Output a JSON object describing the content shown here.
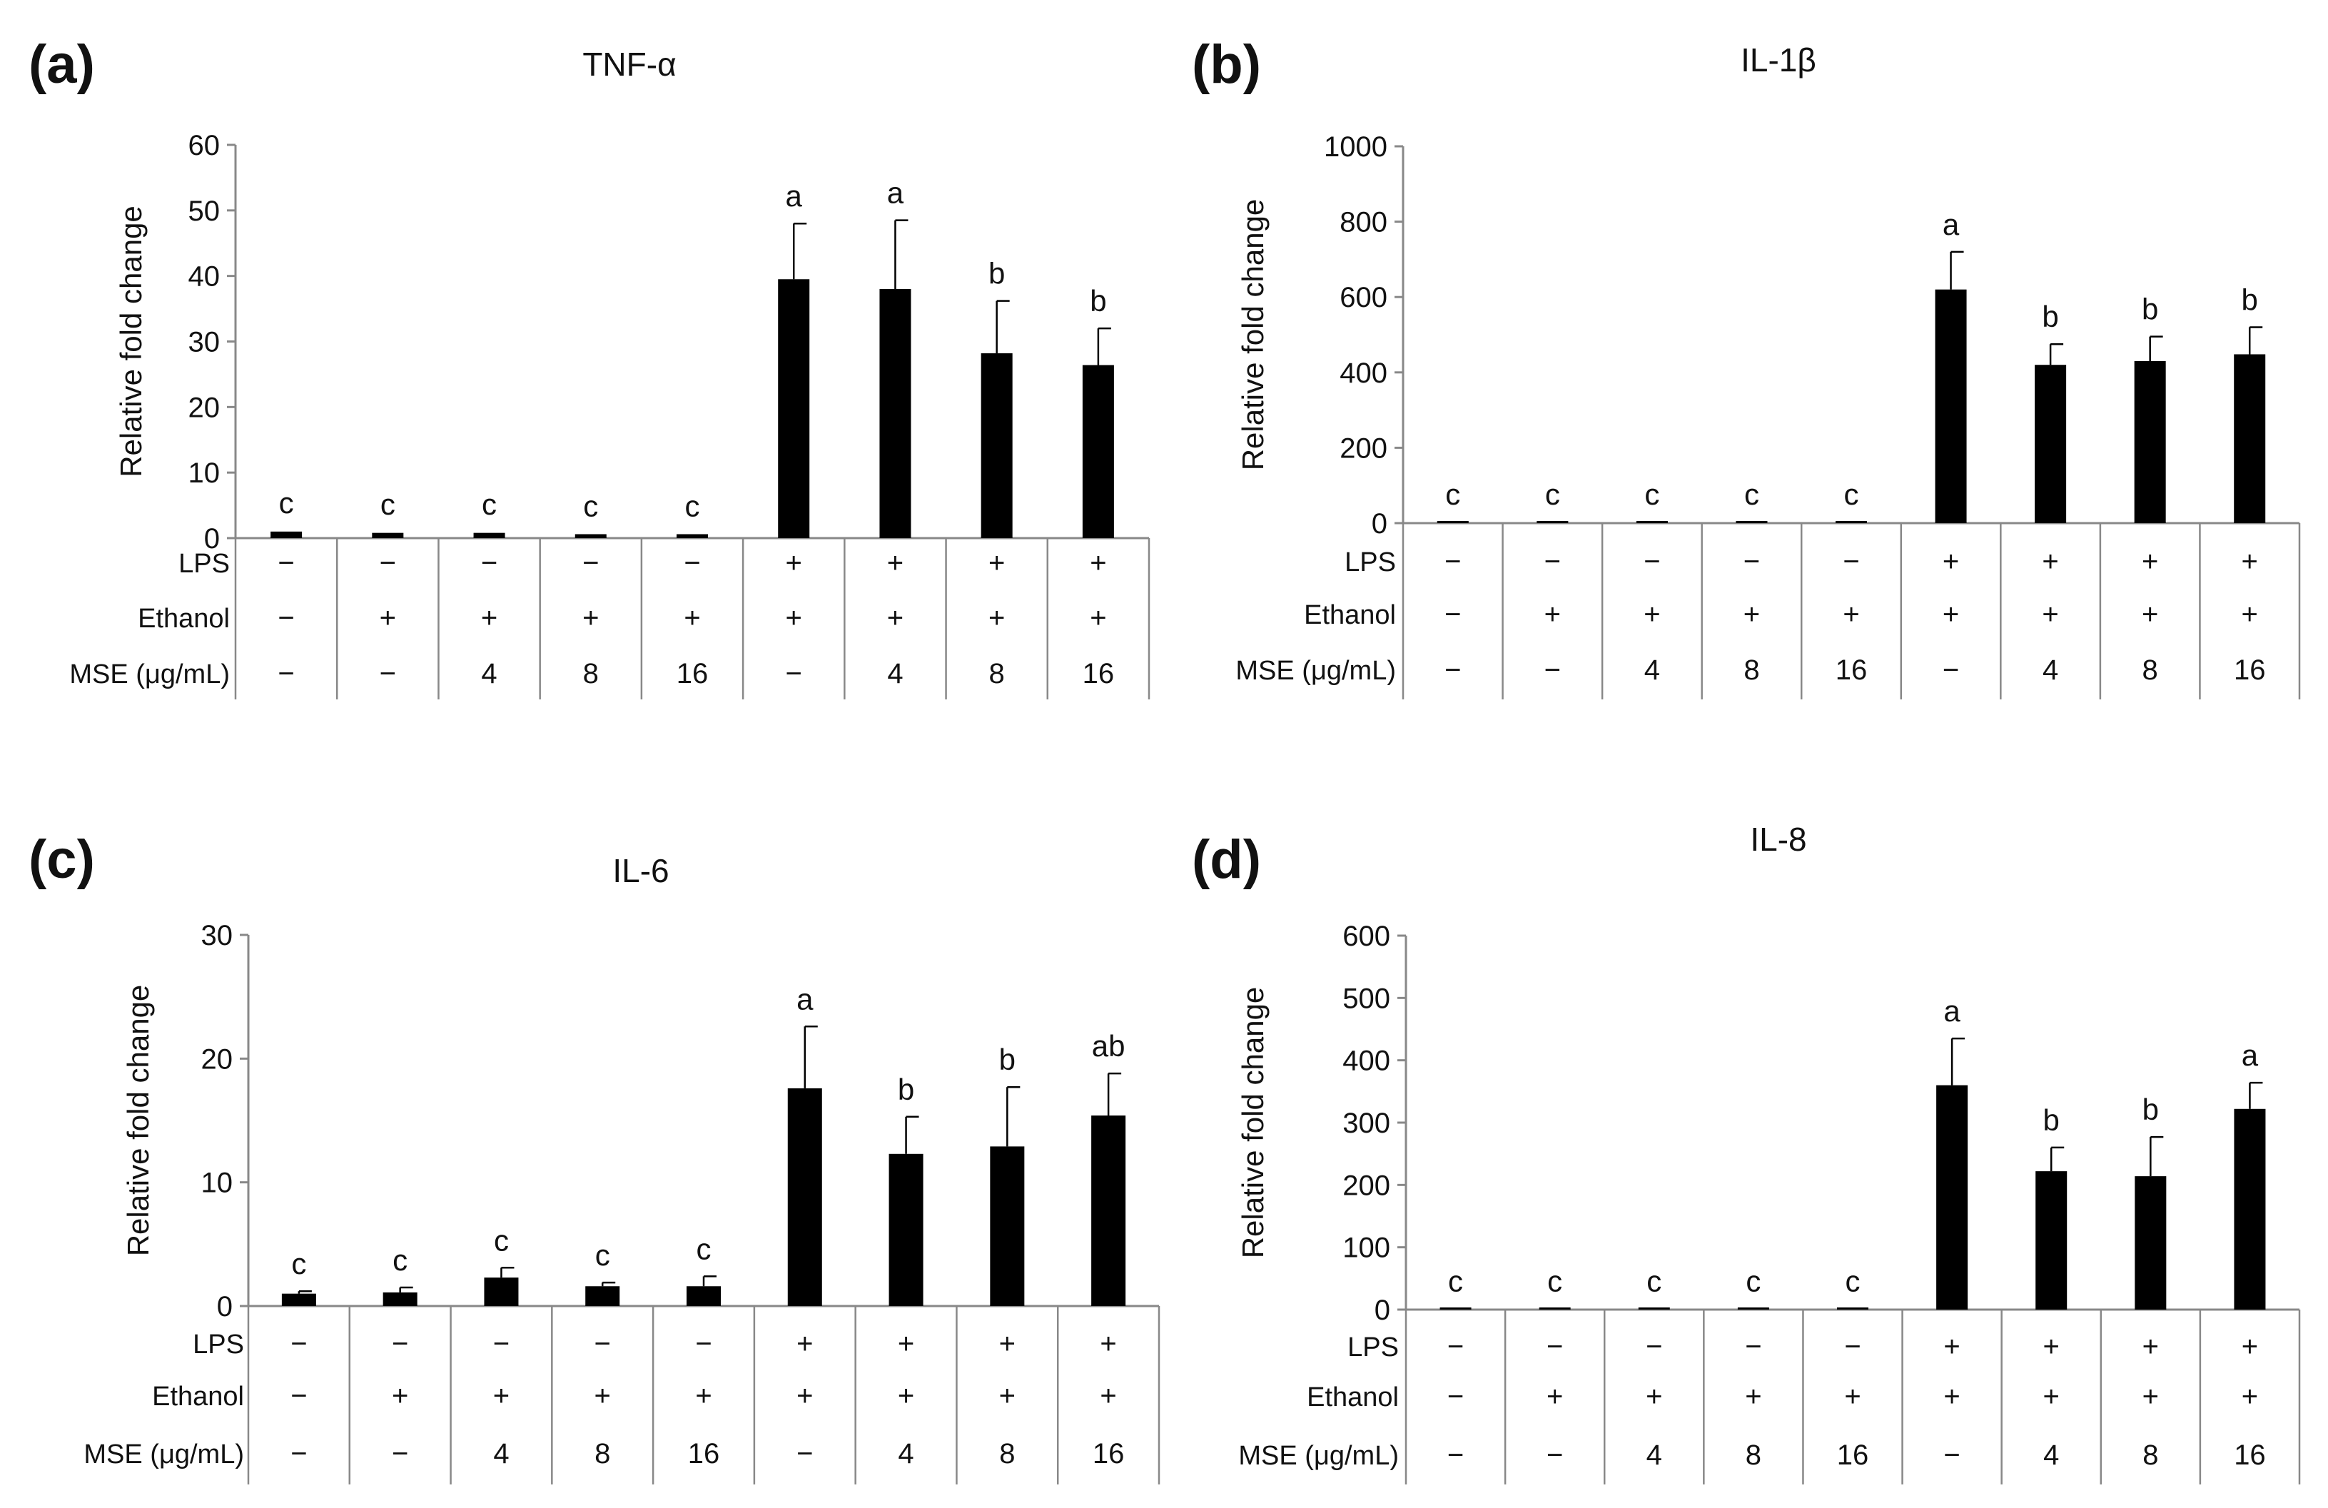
{
  "chart_data": [
    {
      "type": "bar",
      "panel_label": "(a)",
      "title": "TNF-α",
      "ylabel": "Relative fold change",
      "ylim": [
        0,
        60
      ],
      "yticks": [
        "0",
        "10",
        "20",
        "30",
        "40",
        "50",
        "60"
      ],
      "values": [
        1.0,
        0.8,
        0.8,
        0.6,
        0.6,
        39.5,
        38.0,
        28.2,
        26.4
      ],
      "errors": [
        0.2,
        0.2,
        0.2,
        0.1,
        0.1,
        8.5,
        10.5,
        8.0,
        5.6
      ],
      "letters": [
        "c",
        "c",
        "c",
        "c",
        "c",
        "a",
        "a",
        "b",
        "b"
      ],
      "rows": [
        {
          "label": "LPS",
          "cells": [
            "−",
            "−",
            "−",
            "−",
            "−",
            "+",
            "+",
            "+",
            "+"
          ]
        },
        {
          "label": "Ethanol",
          "cells": [
            "−",
            "+",
            "+",
            "+",
            "+",
            "+",
            "+",
            "+",
            "+"
          ]
        },
        {
          "label": "MSE (μg/mL)",
          "cells": [
            "−",
            "−",
            "4",
            "8",
            "16",
            "−",
            "4",
            "8",
            "16"
          ]
        }
      ]
    },
    {
      "type": "bar",
      "panel_label": "(b)",
      "title": "IL-1β",
      "ylabel": "Relative fold change",
      "ylim": [
        0,
        1000
      ],
      "yticks": [
        "0",
        "200",
        "400",
        "600",
        "800",
        "1000"
      ],
      "values": [
        3,
        3,
        3,
        3,
        3,
        620,
        420,
        430,
        448
      ],
      "errors": [
        1,
        1,
        1,
        1,
        1,
        100,
        55,
        65,
        72
      ],
      "letters": [
        "c",
        "c",
        "c",
        "c",
        "c",
        "a",
        "b",
        "b",
        "b"
      ],
      "rows": [
        {
          "label": "LPS",
          "cells": [
            "−",
            "−",
            "−",
            "−",
            "−",
            "+",
            "+",
            "+",
            "+"
          ]
        },
        {
          "label": "Ethanol",
          "cells": [
            "−",
            "+",
            "+",
            "+",
            "+",
            "+",
            "+",
            "+",
            "+"
          ]
        },
        {
          "label": "MSE (μg/mL)",
          "cells": [
            "−",
            "−",
            "4",
            "8",
            "16",
            "−",
            "4",
            "8",
            "16"
          ]
        }
      ]
    },
    {
      "type": "bar",
      "panel_label": "(c)",
      "title": "IL-6",
      "ylabel": "Relative fold change",
      "ylim": [
        0,
        30
      ],
      "yticks": [
        "0",
        "10",
        "20",
        "30"
      ],
      "values": [
        1.0,
        1.1,
        2.3,
        1.6,
        1.6,
        17.6,
        12.3,
        12.9,
        15.4
      ],
      "errors": [
        0.2,
        0.4,
        0.8,
        0.3,
        0.8,
        5.0,
        3.0,
        4.8,
        3.4
      ],
      "letters": [
        "c",
        "c",
        "c",
        "c",
        "c",
        "a",
        "b",
        "b",
        "ab"
      ],
      "rows": [
        {
          "label": "LPS",
          "cells": [
            "−",
            "−",
            "−",
            "−",
            "−",
            "+",
            "+",
            "+",
            "+"
          ]
        },
        {
          "label": "Ethanol",
          "cells": [
            "−",
            "+",
            "+",
            "+",
            "+",
            "+",
            "+",
            "+",
            "+"
          ]
        },
        {
          "label": "MSE (μg/mL)",
          "cells": [
            "−",
            "−",
            "4",
            "8",
            "16",
            "−",
            "4",
            "8",
            "16"
          ]
        }
      ]
    },
    {
      "type": "bar",
      "panel_label": "(d)",
      "title": "IL-8",
      "ylabel": "Relative fold change",
      "ylim": [
        0,
        600
      ],
      "yticks": [
        "0",
        "100",
        "200",
        "300",
        "400",
        "500",
        "600"
      ],
      "values": [
        1.5,
        1.5,
        1.5,
        1.5,
        1.5,
        360,
        222,
        214,
        322
      ],
      "errors": [
        0.5,
        0.5,
        0.5,
        0.5,
        0.5,
        75,
        38,
        63,
        42
      ],
      "letters": [
        "c",
        "c",
        "c",
        "c",
        "c",
        "a",
        "b",
        "b",
        "a"
      ],
      "rows": [
        {
          "label": "LPS",
          "cells": [
            "−",
            "−",
            "−",
            "−",
            "−",
            "+",
            "+",
            "+",
            "+"
          ]
        },
        {
          "label": "Ethanol",
          "cells": [
            "−",
            "+",
            "+",
            "+",
            "+",
            "+",
            "+",
            "+",
            "+"
          ]
        },
        {
          "label": "MSE (μg/mL)",
          "cells": [
            "−",
            "−",
            "4",
            "8",
            "16",
            "−",
            "4",
            "8",
            "16"
          ]
        }
      ]
    }
  ]
}
